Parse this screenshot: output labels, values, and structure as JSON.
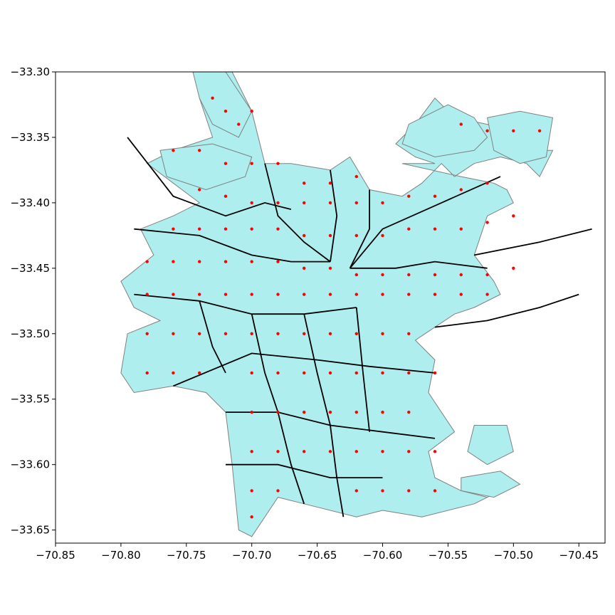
{
  "chart_data": {
    "type": "map",
    "title": "",
    "xlabel": "",
    "ylabel": "",
    "xlim": [
      -70.85,
      -70.43
    ],
    "ylim": [
      -33.66,
      -33.3
    ],
    "x_ticks": [
      -70.85,
      -70.8,
      -70.75,
      -70.7,
      -70.65,
      -70.6,
      -70.55,
      -70.5,
      -70.45
    ],
    "x_tick_labels": [
      "−70.85",
      "−70.80",
      "−70.75",
      "−70.70",
      "−70.65",
      "−70.60",
      "−70.55",
      "−70.50",
      "−70.45"
    ],
    "y_ticks": [
      -33.3,
      -33.35,
      -33.4,
      -33.45,
      -33.5,
      -33.55,
      -33.6,
      -33.65
    ],
    "y_tick_labels": [
      "−33.30",
      "−33.35",
      "−33.40",
      "−33.45",
      "−33.50",
      "−33.55",
      "−33.60",
      "−33.65"
    ],
    "grid": false,
    "colors": {
      "zone_fill": "#aeeeee",
      "zone_edge": "#808080",
      "district_line": "#000000",
      "point": "#ff0000"
    },
    "urban_outline": [
      [
        -70.73,
        -33.3
      ],
      [
        -70.715,
        -33.3
      ],
      [
        -70.7,
        -33.33
      ],
      [
        -70.69,
        -33.37
      ],
      [
        -70.67,
        -33.37
      ],
      [
        -70.64,
        -33.375
      ],
      [
        -70.625,
        -33.365
      ],
      [
        -70.61,
        -33.39
      ],
      [
        -70.585,
        -33.395
      ],
      [
        -70.57,
        -33.385
      ],
      [
        -70.555,
        -33.37
      ],
      [
        -70.545,
        -33.38
      ],
      [
        -70.53,
        -33.37
      ],
      [
        -70.51,
        -33.365
      ],
      [
        -70.49,
        -33.37
      ],
      [
        -70.48,
        -33.38
      ],
      [
        -70.47,
        -33.36
      ],
      [
        -70.49,
        -33.36
      ],
      [
        -70.505,
        -33.345
      ],
      [
        -70.52,
        -33.34
      ],
      [
        -70.545,
        -33.335
      ],
      [
        -70.56,
        -33.32
      ],
      [
        -70.575,
        -33.34
      ],
      [
        -70.59,
        -33.355
      ],
      [
        -70.575,
        -33.365
      ],
      [
        -70.56,
        -33.37
      ],
      [
        -70.585,
        -33.37
      ],
      [
        -70.54,
        -33.38
      ],
      [
        -70.515,
        -33.385
      ],
      [
        -70.505,
        -33.39
      ],
      [
        -70.5,
        -33.4
      ],
      [
        -70.52,
        -33.41
      ],
      [
        -70.53,
        -33.44
      ],
      [
        -70.515,
        -33.46
      ],
      [
        -70.51,
        -33.47
      ],
      [
        -70.53,
        -33.48
      ],
      [
        -70.545,
        -33.485
      ],
      [
        -70.56,
        -33.495
      ],
      [
        -70.575,
        -33.505
      ],
      [
        -70.56,
        -33.52
      ],
      [
        -70.565,
        -33.545
      ],
      [
        -70.555,
        -33.56
      ],
      [
        -70.545,
        -33.575
      ],
      [
        -70.565,
        -33.59
      ],
      [
        -70.56,
        -33.61
      ],
      [
        -70.54,
        -33.62
      ],
      [
        -70.52,
        -33.625
      ],
      [
        -70.5,
        -33.615
      ],
      [
        -70.53,
        -33.63
      ],
      [
        -70.57,
        -33.64
      ],
      [
        -70.6,
        -33.635
      ],
      [
        -70.62,
        -33.64
      ],
      [
        -70.66,
        -33.63
      ],
      [
        -70.68,
        -33.625
      ],
      [
        -70.7,
        -33.655
      ],
      [
        -70.71,
        -33.65
      ],
      [
        -70.715,
        -33.6
      ],
      [
        -70.72,
        -33.56
      ],
      [
        -70.735,
        -33.545
      ],
      [
        -70.76,
        -33.54
      ],
      [
        -70.79,
        -33.545
      ],
      [
        -70.8,
        -33.53
      ],
      [
        -70.795,
        -33.5
      ],
      [
        -70.77,
        -33.49
      ],
      [
        -70.79,
        -33.48
      ],
      [
        -70.8,
        -33.46
      ],
      [
        -70.775,
        -33.44
      ],
      [
        -70.785,
        -33.42
      ],
      [
        -70.76,
        -33.41
      ],
      [
        -70.74,
        -33.4
      ],
      [
        -70.76,
        -33.385
      ],
      [
        -70.78,
        -33.37
      ],
      [
        -70.76,
        -33.36
      ],
      [
        -70.73,
        -33.35
      ],
      [
        -70.74,
        -33.32
      ],
      [
        -70.73,
        -33.3
      ]
    ],
    "zone_polygons": [
      [
        [
          -70.745,
          -33.3
        ],
        [
          -70.72,
          -33.3
        ],
        [
          -70.7,
          -33.33
        ],
        [
          -70.71,
          -33.35
        ],
        [
          -70.73,
          -33.34
        ],
        [
          -70.74,
          -33.32
        ],
        [
          -70.745,
          -33.3
        ]
      ],
      [
        [
          -70.58,
          -33.34
        ],
        [
          -70.55,
          -33.325
        ],
        [
          -70.53,
          -33.335
        ],
        [
          -70.52,
          -33.35
        ],
        [
          -70.53,
          -33.36
        ],
        [
          -70.56,
          -33.365
        ],
        [
          -70.585,
          -33.355
        ],
        [
          -70.58,
          -33.34
        ]
      ],
      [
        [
          -70.52,
          -33.335
        ],
        [
          -70.495,
          -33.33
        ],
        [
          -70.47,
          -33.335
        ],
        [
          -70.475,
          -33.365
        ],
        [
          -70.495,
          -33.37
        ],
        [
          -70.515,
          -33.36
        ],
        [
          -70.52,
          -33.335
        ]
      ],
      [
        [
          -70.77,
          -33.36
        ],
        [
          -70.73,
          -33.355
        ],
        [
          -70.7,
          -33.365
        ],
        [
          -70.705,
          -33.38
        ],
        [
          -70.735,
          -33.39
        ],
        [
          -70.765,
          -33.38
        ],
        [
          -70.77,
          -33.36
        ]
      ],
      [
        [
          -70.53,
          -33.57
        ],
        [
          -70.505,
          -33.57
        ],
        [
          -70.5,
          -33.59
        ],
        [
          -70.52,
          -33.6
        ],
        [
          -70.535,
          -33.59
        ],
        [
          -70.53,
          -33.57
        ]
      ],
      [
        [
          -70.54,
          -33.61
        ],
        [
          -70.51,
          -33.605
        ],
        [
          -70.495,
          -33.615
        ],
        [
          -70.515,
          -33.625
        ],
        [
          -70.54,
          -33.62
        ],
        [
          -70.54,
          -33.61
        ]
      ]
    ],
    "district_lines": [
      [
        [
          -70.795,
          -33.35
        ],
        [
          -70.76,
          -33.395
        ],
        [
          -70.72,
          -33.41
        ],
        [
          -70.69,
          -33.4
        ],
        [
          -70.67,
          -33.405
        ]
      ],
      [
        [
          -70.69,
          -33.37
        ],
        [
          -70.68,
          -33.41
        ],
        [
          -70.66,
          -33.43
        ],
        [
          -70.64,
          -33.445
        ]
      ],
      [
        [
          -70.64,
          -33.375
        ],
        [
          -70.635,
          -33.41
        ],
        [
          -70.64,
          -33.445
        ]
      ],
      [
        [
          -70.61,
          -33.39
        ],
        [
          -70.61,
          -33.42
        ],
        [
          -70.625,
          -33.45
        ]
      ],
      [
        [
          -70.51,
          -33.38
        ],
        [
          -70.555,
          -33.4
        ],
        [
          -70.6,
          -33.42
        ],
        [
          -70.625,
          -33.45
        ]
      ],
      [
        [
          -70.79,
          -33.42
        ],
        [
          -70.74,
          -33.425
        ],
        [
          -70.7,
          -33.44
        ],
        [
          -70.67,
          -33.445
        ],
        [
          -70.64,
          -33.445
        ]
      ],
      [
        [
          -70.79,
          -33.47
        ],
        [
          -70.74,
          -33.475
        ],
        [
          -70.7,
          -33.485
        ],
        [
          -70.66,
          -33.485
        ],
        [
          -70.62,
          -33.48
        ]
      ],
      [
        [
          -70.625,
          -33.45
        ],
        [
          -70.59,
          -33.45
        ],
        [
          -70.56,
          -33.445
        ],
        [
          -70.52,
          -33.45
        ]
      ],
      [
        [
          -70.74,
          -33.475
        ],
        [
          -70.73,
          -33.51
        ],
        [
          -70.72,
          -33.53
        ]
      ],
      [
        [
          -70.7,
          -33.485
        ],
        [
          -70.69,
          -33.53
        ],
        [
          -70.68,
          -33.56
        ]
      ],
      [
        [
          -70.66,
          -33.485
        ],
        [
          -70.65,
          -33.53
        ],
        [
          -70.64,
          -33.57
        ]
      ],
      [
        [
          -70.62,
          -33.48
        ],
        [
          -70.615,
          -33.53
        ],
        [
          -70.61,
          -33.575
        ]
      ],
      [
        [
          -70.76,
          -33.54
        ],
        [
          -70.7,
          -33.515
        ],
        [
          -70.65,
          -33.52
        ],
        [
          -70.61,
          -33.525
        ],
        [
          -70.56,
          -33.53
        ]
      ],
      [
        [
          -70.72,
          -33.56
        ],
        [
          -70.68,
          -33.56
        ],
        [
          -70.64,
          -33.57
        ],
        [
          -70.6,
          -33.575
        ],
        [
          -70.56,
          -33.58
        ]
      ],
      [
        [
          -70.68,
          -33.56
        ],
        [
          -70.67,
          -33.6
        ],
        [
          -70.66,
          -33.63
        ]
      ],
      [
        [
          -70.64,
          -33.57
        ],
        [
          -70.635,
          -33.61
        ],
        [
          -70.63,
          -33.64
        ]
      ],
      [
        [
          -70.72,
          -33.6
        ],
        [
          -70.68,
          -33.6
        ],
        [
          -70.64,
          -33.61
        ],
        [
          -70.6,
          -33.61
        ]
      ],
      [
        [
          -70.56,
          -33.495
        ],
        [
          -70.52,
          -33.49
        ],
        [
          -70.48,
          -33.48
        ],
        [
          -70.45,
          -33.47
        ]
      ],
      [
        [
          -70.53,
          -33.44
        ],
        [
          -70.48,
          -33.43
        ],
        [
          -70.44,
          -33.42
        ]
      ]
    ],
    "points": [
      [
        -70.73,
        -33.32
      ],
      [
        -70.72,
        -33.33
      ],
      [
        -70.71,
        -33.34
      ],
      [
        -70.7,
        -33.33
      ],
      [
        -70.76,
        -33.36
      ],
      [
        -70.74,
        -33.36
      ],
      [
        -70.72,
        -33.37
      ],
      [
        -70.7,
        -33.37
      ],
      [
        -70.68,
        -33.37
      ],
      [
        -70.66,
        -33.385
      ],
      [
        -70.64,
        -33.385
      ],
      [
        -70.62,
        -33.38
      ],
      [
        -70.74,
        -33.39
      ],
      [
        -70.72,
        -33.395
      ],
      [
        -70.7,
        -33.4
      ],
      [
        -70.68,
        -33.4
      ],
      [
        -70.66,
        -33.4
      ],
      [
        -70.64,
        -33.4
      ],
      [
        -70.62,
        -33.4
      ],
      [
        -70.6,
        -33.4
      ],
      [
        -70.58,
        -33.395
      ],
      [
        -70.56,
        -33.395
      ],
      [
        -70.54,
        -33.39
      ],
      [
        -70.52,
        -33.385
      ],
      [
        -70.76,
        -33.42
      ],
      [
        -70.74,
        -33.42
      ],
      [
        -70.72,
        -33.42
      ],
      [
        -70.7,
        -33.42
      ],
      [
        -70.68,
        -33.42
      ],
      [
        -70.66,
        -33.425
      ],
      [
        -70.64,
        -33.425
      ],
      [
        -70.62,
        -33.425
      ],
      [
        -70.6,
        -33.425
      ],
      [
        -70.58,
        -33.42
      ],
      [
        -70.56,
        -33.42
      ],
      [
        -70.54,
        -33.42
      ],
      [
        -70.52,
        -33.415
      ],
      [
        -70.5,
        -33.41
      ],
      [
        -70.78,
        -33.445
      ],
      [
        -70.76,
        -33.445
      ],
      [
        -70.74,
        -33.445
      ],
      [
        -70.72,
        -33.445
      ],
      [
        -70.7,
        -33.445
      ],
      [
        -70.68,
        -33.445
      ],
      [
        -70.66,
        -33.45
      ],
      [
        -70.64,
        -33.45
      ],
      [
        -70.62,
        -33.455
      ],
      [
        -70.6,
        -33.455
      ],
      [
        -70.58,
        -33.455
      ],
      [
        -70.56,
        -33.455
      ],
      [
        -70.54,
        -33.455
      ],
      [
        -70.52,
        -33.455
      ],
      [
        -70.5,
        -33.45
      ],
      [
        -70.78,
        -33.47
      ],
      [
        -70.76,
        -33.47
      ],
      [
        -70.74,
        -33.47
      ],
      [
        -70.72,
        -33.47
      ],
      [
        -70.7,
        -33.47
      ],
      [
        -70.68,
        -33.47
      ],
      [
        -70.66,
        -33.47
      ],
      [
        -70.64,
        -33.47
      ],
      [
        -70.62,
        -33.47
      ],
      [
        -70.6,
        -33.47
      ],
      [
        -70.58,
        -33.47
      ],
      [
        -70.56,
        -33.47
      ],
      [
        -70.54,
        -33.47
      ],
      [
        -70.52,
        -33.47
      ],
      [
        -70.78,
        -33.5
      ],
      [
        -70.76,
        -33.5
      ],
      [
        -70.74,
        -33.5
      ],
      [
        -70.72,
        -33.5
      ],
      [
        -70.7,
        -33.5
      ],
      [
        -70.68,
        -33.5
      ],
      [
        -70.66,
        -33.5
      ],
      [
        -70.64,
        -33.5
      ],
      [
        -70.62,
        -33.5
      ],
      [
        -70.6,
        -33.5
      ],
      [
        -70.58,
        -33.5
      ],
      [
        -70.78,
        -33.53
      ],
      [
        -70.76,
        -33.53
      ],
      [
        -70.74,
        -33.53
      ],
      [
        -70.7,
        -33.53
      ],
      [
        -70.68,
        -33.53
      ],
      [
        -70.66,
        -33.53
      ],
      [
        -70.64,
        -33.53
      ],
      [
        -70.62,
        -33.53
      ],
      [
        -70.6,
        -33.53
      ],
      [
        -70.58,
        -33.53
      ],
      [
        -70.56,
        -33.53
      ],
      [
        -70.7,
        -33.56
      ],
      [
        -70.68,
        -33.56
      ],
      [
        -70.66,
        -33.56
      ],
      [
        -70.64,
        -33.56
      ],
      [
        -70.62,
        -33.56
      ],
      [
        -70.6,
        -33.56
      ],
      [
        -70.58,
        -33.56
      ],
      [
        -70.7,
        -33.59
      ],
      [
        -70.68,
        -33.59
      ],
      [
        -70.66,
        -33.59
      ],
      [
        -70.64,
        -33.59
      ],
      [
        -70.62,
        -33.59
      ],
      [
        -70.6,
        -33.59
      ],
      [
        -70.58,
        -33.59
      ],
      [
        -70.56,
        -33.59
      ],
      [
        -70.7,
        -33.62
      ],
      [
        -70.68,
        -33.62
      ],
      [
        -70.62,
        -33.62
      ],
      [
        -70.6,
        -33.62
      ],
      [
        -70.58,
        -33.62
      ],
      [
        -70.56,
        -33.62
      ],
      [
        -70.7,
        -33.64
      ],
      [
        -70.54,
        -33.34
      ],
      [
        -70.52,
        -33.345
      ],
      [
        -70.5,
        -33.345
      ],
      [
        -70.48,
        -33.345
      ]
    ]
  }
}
